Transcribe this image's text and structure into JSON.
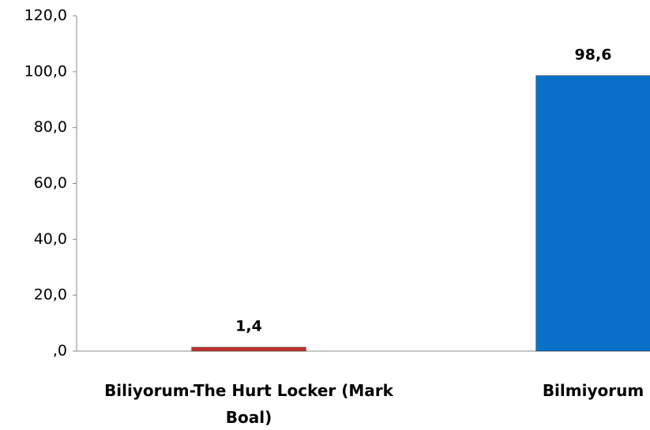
{
  "chart_data": {
    "type": "bar",
    "categories": [
      "Biliyorum-The Hurt Locker (Mark Boal)",
      "Bilmiyorum"
    ],
    "values": [
      1.4,
      98.6
    ],
    "value_labels": [
      "1,4",
      "98,6"
    ],
    "colors": [
      "#c0322f",
      "#0a6fc6"
    ],
    "ylim": [
      0,
      120
    ],
    "yticks": [
      {
        "value": 0,
        "label": ",0"
      },
      {
        "value": 20,
        "label": "20,0"
      },
      {
        "value": 40,
        "label": "40,0"
      },
      {
        "value": 60,
        "label": "60,0"
      },
      {
        "value": 80,
        "label": "80,0"
      },
      {
        "value": 100,
        "label": "100,0"
      },
      {
        "value": 120,
        "label": "120,0"
      }
    ],
    "grid": false
  }
}
